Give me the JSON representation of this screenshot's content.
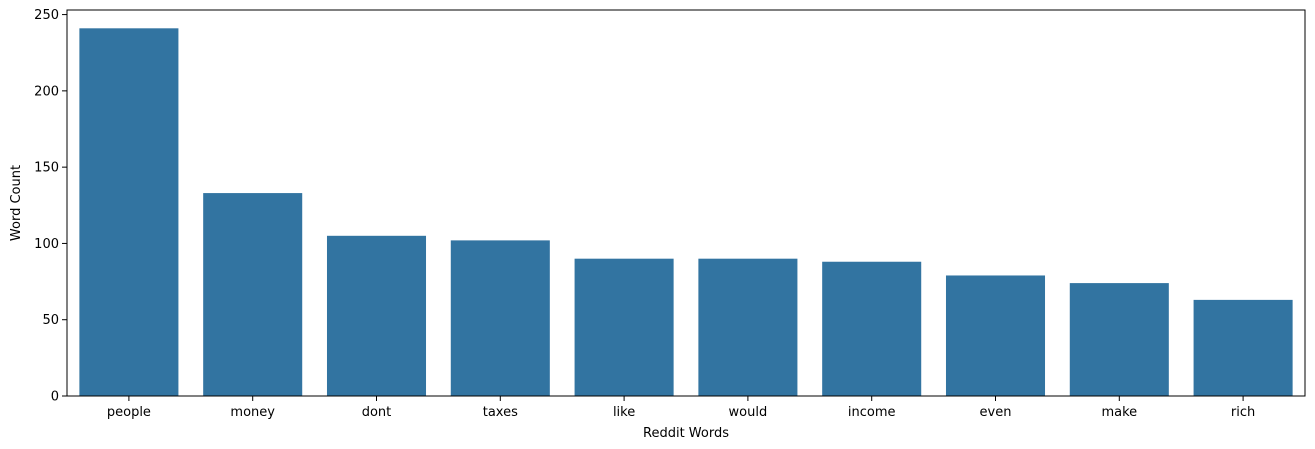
{
  "chart_data": {
    "type": "bar",
    "title": "",
    "xlabel": "Reddit Words",
    "ylabel": "Word Count",
    "categories": [
      "people",
      "money",
      "dont",
      "taxes",
      "like",
      "would",
      "income",
      "even",
      "make",
      "rich"
    ],
    "values": [
      241,
      133,
      105,
      102,
      90,
      90,
      88,
      79,
      74,
      63
    ],
    "ylim": [
      0,
      253
    ],
    "yticks": [
      0,
      50,
      100,
      150,
      200,
      250
    ],
    "grid": false,
    "legend": "none",
    "bar_color": "#3274a1"
  }
}
